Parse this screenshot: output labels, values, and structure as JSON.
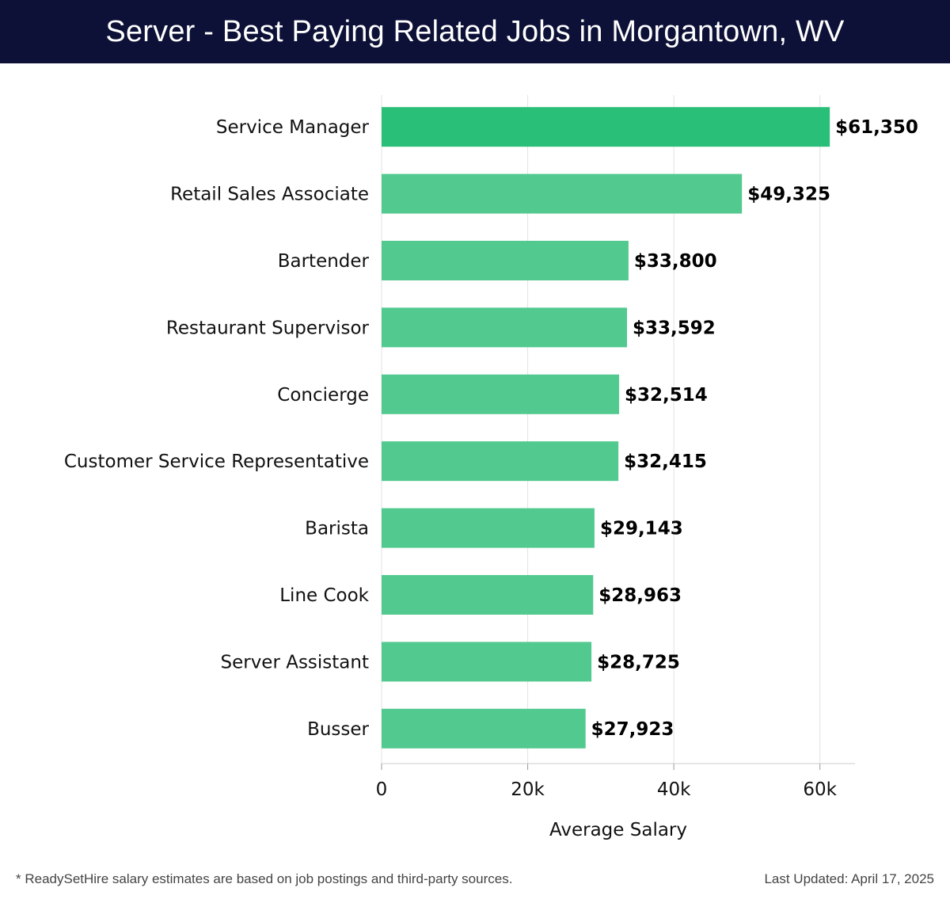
{
  "header": {
    "title": "Server - Best Paying Related Jobs in Morgantown, WV"
  },
  "chart_data": {
    "type": "bar",
    "orientation": "horizontal",
    "categories": [
      "Service Manager",
      "Retail Sales Associate",
      "Bartender",
      "Restaurant Supervisor",
      "Concierge",
      "Customer Service Representative",
      "Barista",
      "Line Cook",
      "Server Assistant",
      "Busser"
    ],
    "values": [
      61350,
      49325,
      33800,
      33592,
      32514,
      32415,
      29143,
      28963,
      28725,
      27923
    ],
    "value_labels": [
      "$61,350",
      "$49,325",
      "$33,800",
      "$33,592",
      "$32,514",
      "$32,415",
      "$29,143",
      "$28,963",
      "$28,725",
      "$27,923"
    ],
    "xlabel": "Average Salary",
    "xlim": [
      0,
      64800
    ],
    "xticks": [
      0,
      20000,
      40000,
      60000
    ],
    "xtick_labels": [
      "0",
      "20k",
      "40k",
      "60k"
    ],
    "grid": true,
    "colors": {
      "top": "#2abf78",
      "rest": "#52c98f",
      "grid": "#e2e2e2"
    }
  },
  "footer": {
    "note": "* ReadySetHire salary estimates are based on job postings and third-party sources.",
    "updated": "Last Updated: April 17, 2025"
  }
}
